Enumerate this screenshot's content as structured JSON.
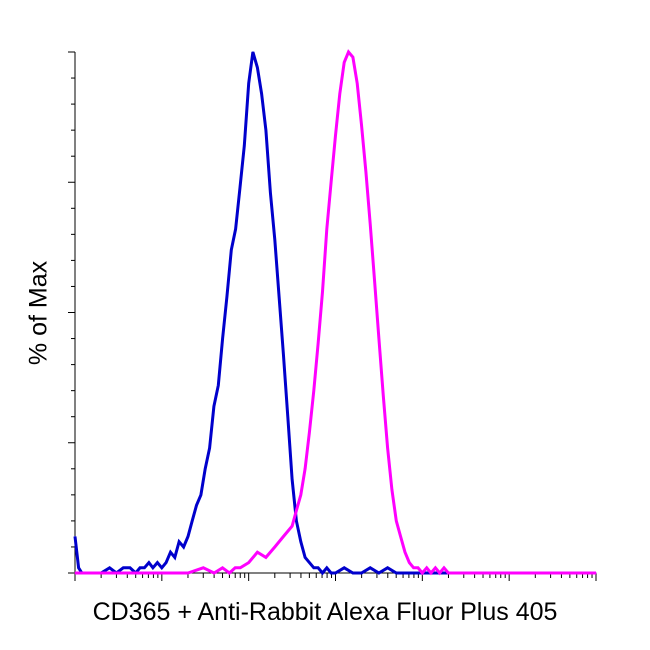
{
  "chart_data": {
    "type": "line",
    "title": "",
    "xlabel": "CD365 + Anti-Rabbit Alexa Fluor Plus 405",
    "ylabel": "% of Max",
    "x_scale": "log",
    "xlim": [
      1,
      1000000
    ],
    "ylim": [
      0,
      100
    ],
    "x_tick_labels_shown": false,
    "y_tick_labels_shown": false,
    "grid": false,
    "legend": "none",
    "series": [
      {
        "color": "#0000cc",
        "x": [
          1.0,
          1.1,
          1.2,
          1.6,
          2.0,
          2.5,
          3.0,
          3.6,
          4.3,
          5.0,
          5.6,
          6.3,
          7.1,
          7.9,
          8.9,
          10.0,
          11.2,
          12.6,
          14.1,
          15.8,
          17.8,
          20.0,
          22.4,
          25.1,
          28.2,
          31.6,
          35.5,
          39.8,
          44.7,
          50.1,
          56.2,
          63.1,
          70.8,
          79.4,
          89.1,
          100.0,
          112,
          126,
          141,
          158,
          178,
          200,
          224,
          251,
          282,
          316,
          355,
          398,
          447,
          501,
          562,
          631,
          708,
          794,
          891,
          1000,
          1259,
          1585,
          1995,
          2512,
          3162,
          3981,
          5012,
          6310,
          7943,
          10000,
          20000,
          50000,
          100000,
          1000000
        ],
        "y": [
          7,
          1,
          0,
          0,
          0,
          1,
          0,
          1,
          1,
          0,
          1,
          1,
          2,
          1,
          2,
          1,
          2,
          4,
          3,
          6,
          5,
          7,
          10,
          13,
          15,
          20,
          24,
          32,
          36,
          45,
          53,
          62,
          66,
          74,
          82,
          94,
          100,
          97,
          92,
          85,
          73,
          64,
          53,
          42,
          30,
          18,
          10,
          6,
          3,
          2,
          1,
          1,
          0,
          1,
          0,
          0,
          1,
          0,
          0,
          1,
          0,
          1,
          0,
          0,
          0,
          0,
          0,
          0,
          0,
          0
        ]
      },
      {
        "color": "#ff00ff",
        "x": [
          1.0,
          10,
          20,
          30,
          40,
          50,
          60,
          70,
          80,
          100,
          126,
          158,
          200,
          251,
          316,
          355,
          398,
          447,
          501,
          562,
          631,
          708,
          794,
          891,
          1000,
          1122,
          1259,
          1413,
          1585,
          1778,
          1995,
          2239,
          2512,
          2818,
          3162,
          3548,
          3981,
          4467,
          5012,
          5623,
          6310,
          7079,
          7943,
          8913,
          10000,
          11220,
          12589,
          14125,
          15849,
          17783,
          19953,
          25119,
          31623,
          39811,
          50119,
          63096,
          100000,
          1000000
        ],
        "y": [
          0,
          0,
          0,
          1,
          0,
          1,
          0,
          1,
          1,
          2,
          4,
          3,
          5,
          7,
          9,
          12,
          15,
          20,
          27,
          35,
          44,
          54,
          66,
          75,
          84,
          92,
          98,
          100,
          99,
          94,
          86,
          77,
          67,
          56,
          45,
          34,
          24,
          16,
          10,
          7,
          4,
          2,
          1,
          1,
          0,
          1,
          0,
          1,
          0,
          1,
          0,
          0,
          0,
          0,
          0,
          0,
          0,
          0
        ]
      }
    ]
  }
}
